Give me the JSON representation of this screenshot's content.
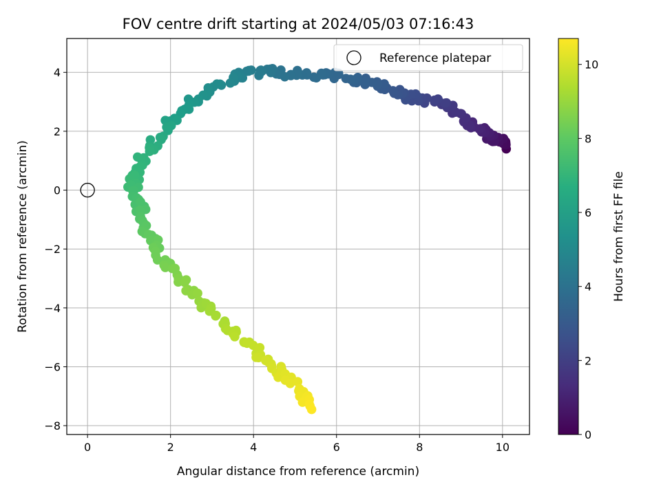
{
  "chart_data": {
    "type": "scatter",
    "title": "FOV centre drift starting at 2024/05/03 07:16:43",
    "xlabel": "Angular distance from reference (arcmin)",
    "ylabel": "Rotation from reference (arcmin)",
    "xlim": [
      -0.5,
      10.65
    ],
    "ylim": [
      -8.3,
      5.15
    ],
    "xticks": [
      0,
      2,
      4,
      6,
      8,
      10
    ],
    "yticks": [
      -8,
      -6,
      -4,
      -2,
      0,
      2,
      4
    ],
    "xtick_labels": [
      "0",
      "2",
      "4",
      "6",
      "8",
      "10"
    ],
    "ytick_labels": [
      "−8",
      "−6",
      "−4",
      "−2",
      "0",
      "2",
      "4"
    ],
    "grid": true,
    "legend": {
      "placement": "top-right",
      "entries": [
        "Reference platepar"
      ]
    },
    "reference_point": {
      "x": 0,
      "y": 0,
      "label": "Reference platepar"
    },
    "colorbar": {
      "label": "Hours from first FF file",
      "colormap": "viridis",
      "range": [
        0,
        10.7
      ],
      "ticks": [
        0,
        2,
        4,
        6,
        8,
        10
      ],
      "tick_labels": [
        "0",
        "2",
        "4",
        "6",
        "8",
        "10"
      ]
    },
    "color_dimension": "Hours from first FF file",
    "path_waypoints": [
      {
        "hours": 0.0,
        "x": 10.05,
        "y": 1.45
      },
      {
        "hours": 0.3,
        "x": 10.0,
        "y": 1.65
      },
      {
        "hours": 0.6,
        "x": 9.75,
        "y": 1.7
      },
      {
        "hours": 0.9,
        "x": 9.6,
        "y": 2.0
      },
      {
        "hours": 1.2,
        "x": 9.3,
        "y": 2.2
      },
      {
        "hours": 1.5,
        "x": 9.0,
        "y": 2.5
      },
      {
        "hours": 1.8,
        "x": 8.7,
        "y": 2.85
      },
      {
        "hours": 2.1,
        "x": 8.4,
        "y": 3.0
      },
      {
        "hours": 2.4,
        "x": 8.0,
        "y": 3.05
      },
      {
        "hours": 2.7,
        "x": 7.6,
        "y": 3.25
      },
      {
        "hours": 3.0,
        "x": 7.2,
        "y": 3.45
      },
      {
        "hours": 3.2,
        "x": 6.8,
        "y": 3.7
      },
      {
        "hours": 3.4,
        "x": 6.3,
        "y": 3.8
      },
      {
        "hours": 3.6,
        "x": 5.8,
        "y": 3.9
      },
      {
        "hours": 3.8,
        "x": 5.3,
        "y": 3.95
      },
      {
        "hours": 4.0,
        "x": 4.8,
        "y": 3.95
      },
      {
        "hours": 4.2,
        "x": 4.4,
        "y": 4.0
      },
      {
        "hours": 4.5,
        "x": 4.0,
        "y": 4.0
      },
      {
        "hours": 4.8,
        "x": 3.6,
        "y": 3.85
      },
      {
        "hours": 5.1,
        "x": 3.2,
        "y": 3.6
      },
      {
        "hours": 5.4,
        "x": 2.8,
        "y": 3.25
      },
      {
        "hours": 5.7,
        "x": 2.45,
        "y": 2.85
      },
      {
        "hours": 6.0,
        "x": 2.15,
        "y": 2.5
      },
      {
        "hours": 6.3,
        "x": 1.85,
        "y": 2.05
      },
      {
        "hours": 6.6,
        "x": 1.6,
        "y": 1.6
      },
      {
        "hours": 6.9,
        "x": 1.35,
        "y": 1.1
      },
      {
        "hours": 7.1,
        "x": 1.2,
        "y": 0.65
      },
      {
        "hours": 7.3,
        "x": 1.1,
        "y": 0.2
      },
      {
        "hours": 7.5,
        "x": 1.25,
        "y": -0.3
      },
      {
        "hours": 7.7,
        "x": 1.3,
        "y": -0.8
      },
      {
        "hours": 7.9,
        "x": 1.35,
        "y": -1.3
      },
      {
        "hours": 8.1,
        "x": 1.55,
        "y": -1.7
      },
      {
        "hours": 8.3,
        "x": 1.7,
        "y": -2.1
      },
      {
        "hours": 8.5,
        "x": 1.95,
        "y": -2.6
      },
      {
        "hours": 8.7,
        "x": 2.2,
        "y": -3.0
      },
      {
        "hours": 8.9,
        "x": 2.55,
        "y": -3.45
      },
      {
        "hours": 9.1,
        "x": 2.85,
        "y": -3.9
      },
      {
        "hours": 9.3,
        "x": 3.2,
        "y": -4.4
      },
      {
        "hours": 9.5,
        "x": 3.5,
        "y": -4.85
      },
      {
        "hours": 9.7,
        "x": 3.85,
        "y": -5.25
      },
      {
        "hours": 9.9,
        "x": 4.2,
        "y": -5.65
      },
      {
        "hours": 10.1,
        "x": 4.55,
        "y": -6.05
      },
      {
        "hours": 10.3,
        "x": 4.85,
        "y": -6.5
      },
      {
        "hours": 10.5,
        "x": 5.15,
        "y": -6.95
      },
      {
        "hours": 10.7,
        "x": 5.4,
        "y": -7.45
      }
    ],
    "points_per_segment": 7,
    "scatter_jitter_arcmin": 0.13
  }
}
